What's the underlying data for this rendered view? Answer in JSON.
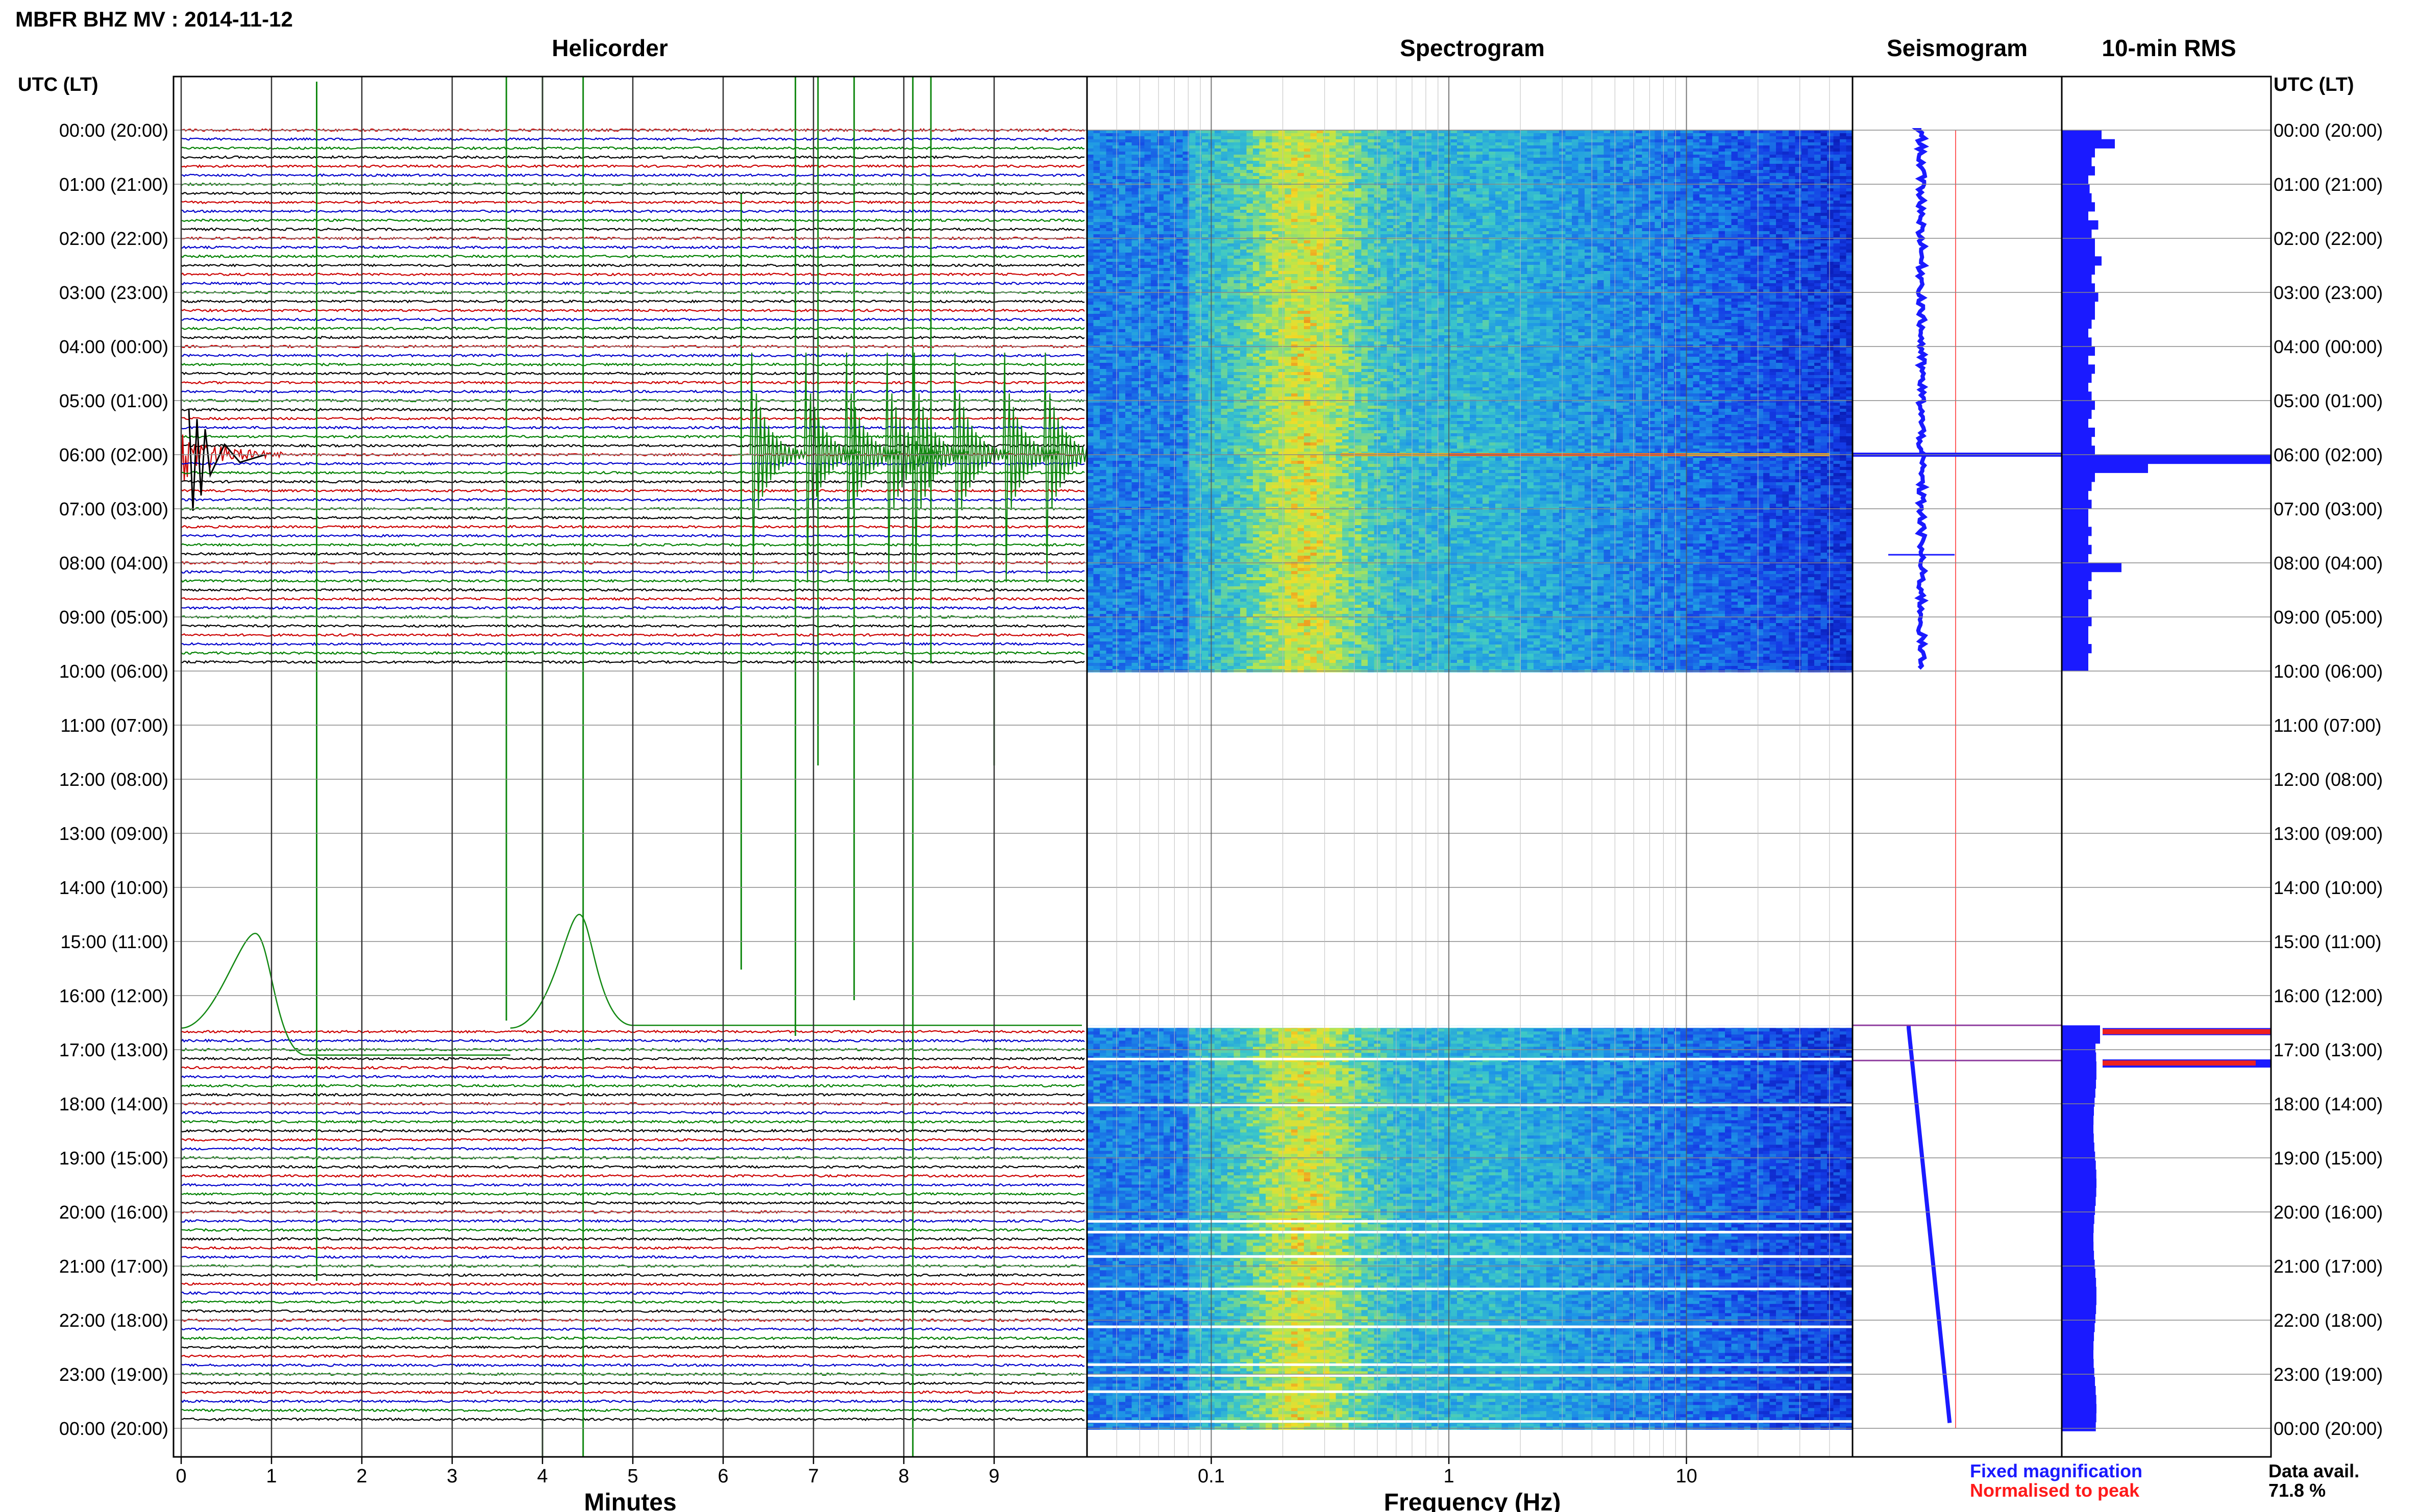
{
  "title": "MBFR BHZ MV : 2014-11-12",
  "panels": {
    "helicorder": "Helicorder",
    "spectrogram": "Spectrogram",
    "seismogram": "Seismogram",
    "rms": "10-min RMS"
  },
  "time_axis_label": "UTC (LT)",
  "hour_labels": [
    "00:00 (20:00)",
    "01:00 (21:00)",
    "02:00 (22:00)",
    "03:00 (23:00)",
    "04:00 (00:00)",
    "05:00 (01:00)",
    "06:00 (02:00)",
    "07:00 (03:00)",
    "08:00 (04:00)",
    "09:00 (05:00)",
    "10:00 (06:00)",
    "11:00 (07:00)",
    "12:00 (08:00)",
    "13:00 (09:00)",
    "14:00 (10:00)",
    "15:00 (11:00)",
    "16:00 (12:00)",
    "17:00 (13:00)",
    "18:00 (14:00)",
    "19:00 (15:00)",
    "20:00 (16:00)",
    "21:00 (17:00)",
    "22:00 (18:00)",
    "23:00 (19:00)",
    "00:00 (20:00)"
  ],
  "helicorder_xlabel": "Minutes",
  "helicorder_ticks": [
    "0",
    "1",
    "2",
    "3",
    "4",
    "5",
    "6",
    "7",
    "8",
    "9"
  ],
  "spectrogram_xlabel": "Frequency (Hz)",
  "spectrogram_ticks": [
    "0.1",
    "1",
    "10"
  ],
  "legend": {
    "fixed": "Fixed magnification",
    "normalised": "Normalised to peak",
    "fixed_color": "#1a1aff",
    "normalised_color": "#ff1a1a"
  },
  "data_avail": {
    "label": "Data avail.",
    "value": "71.8 %"
  },
  "chart_data": {
    "type": "heatmap",
    "station": "MBFR BHZ MV",
    "date": "2014-11-12",
    "data_availability_percent": 71.8,
    "hours_utc": [
      0,
      1,
      2,
      3,
      4,
      5,
      6,
      7,
      8,
      9,
      10,
      11,
      12,
      13,
      14,
      15,
      16,
      17,
      18,
      19,
      20,
      21,
      22,
      23,
      24
    ],
    "data_gap_utc": [
      10.0,
      16.6
    ],
    "helicorder_xlim_minutes": [
      0,
      10
    ],
    "spectrogram_xlim_hz": [
      0.03,
      50
    ],
    "spectrogram_scale": "log",
    "helicorder_trace_colors": [
      "#000000",
      "#cc0000",
      "#0000cc",
      "#008000"
    ],
    "rms_10min_relative": [
      0.6,
      0.8,
      0.5,
      0.45,
      0.5,
      0.4,
      0.42,
      0.45,
      0.5,
      0.4,
      0.55,
      0.45,
      0.5,
      0.5,
      0.6,
      0.5,
      0.45,
      0.5,
      0.55,
      0.5,
      0.5,
      0.45,
      0.4,
      0.45,
      0.5,
      0.4,
      0.5,
      0.45,
      0.4,
      0.45,
      0.5,
      0.45,
      0.4,
      0.5,
      0.45,
      0.5,
      3.2,
      1.3,
      0.5,
      0.45,
      0.4,
      0.45,
      0.4,
      0.4,
      0.45,
      0.4,
      0.45,
      0.4,
      0.9,
      0.45,
      0.4,
      0.45,
      0.4,
      0.4,
      0.45,
      0.4,
      0.4,
      0.45,
      0.4,
      0.4
    ]
  }
}
